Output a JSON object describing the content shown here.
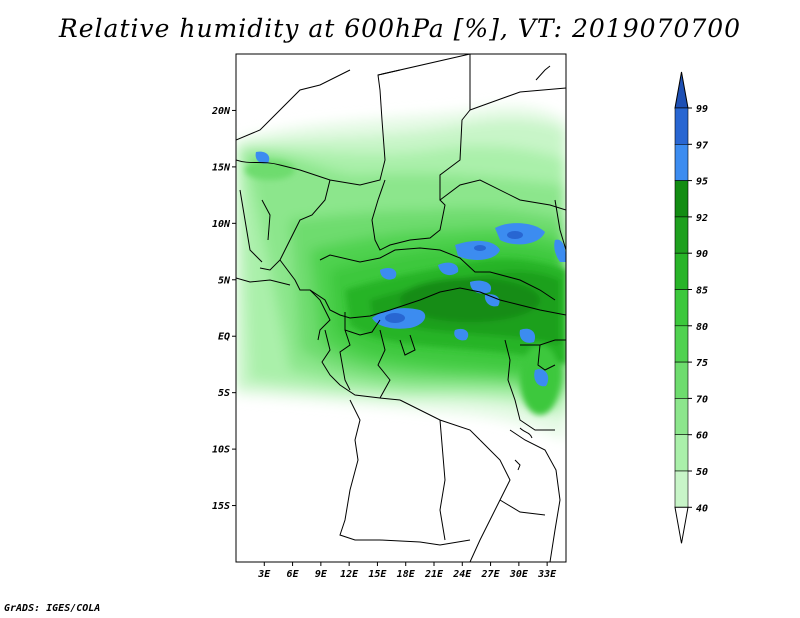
{
  "title": "Relative humidity at 600hPa [%], VT: 2019070700",
  "credit": "GrADS: IGES/COLA",
  "map": {
    "lon_range": [
      0,
      35
    ],
    "lat_range": [
      -20,
      25
    ],
    "lat_ticks": [
      {
        "value": 20,
        "label": "20N"
      },
      {
        "value": 15,
        "label": "15N"
      },
      {
        "value": 10,
        "label": "10N"
      },
      {
        "value": 5,
        "label": "5N"
      },
      {
        "value": 0,
        "label": "EQ"
      },
      {
        "value": -5,
        "label": "5S"
      },
      {
        "value": -10,
        "label": "10S"
      },
      {
        "value": -15,
        "label": "15S"
      }
    ],
    "lon_ticks": [
      {
        "value": 3,
        "label": "3E"
      },
      {
        "value": 6,
        "label": "6E"
      },
      {
        "value": 9,
        "label": "9E"
      },
      {
        "value": 12,
        "label": "12E"
      },
      {
        "value": 15,
        "label": "15E"
      },
      {
        "value": 18,
        "label": "18E"
      },
      {
        "value": 21,
        "label": "21E"
      },
      {
        "value": 24,
        "label": "24E"
      },
      {
        "value": 27,
        "label": "27E"
      },
      {
        "value": 30,
        "label": "30E"
      },
      {
        "value": 33,
        "label": "33E"
      }
    ]
  },
  "colorbar": {
    "levels": [
      {
        "label": "40",
        "color": "#e6fae6"
      },
      {
        "label": "50",
        "color": "#c8f5c8"
      },
      {
        "label": "60",
        "color": "#aaf0aa"
      },
      {
        "label": "70",
        "color": "#8ce68c"
      },
      {
        "label": "75",
        "color": "#6edc6e"
      },
      {
        "label": "80",
        "color": "#50d250"
      },
      {
        "label": "85",
        "color": "#3cc83c"
      },
      {
        "label": "90",
        "color": "#28b428"
      },
      {
        "label": "92",
        "color": "#1ea01e"
      },
      {
        "label": "95",
        "color": "#128c12"
      },
      {
        "label": "97",
        "color": "#3c8cf0"
      },
      {
        "label": "99",
        "color": "#2866d2"
      }
    ],
    "low_color": "#ffffff",
    "high_color": "#1e50b4"
  }
}
